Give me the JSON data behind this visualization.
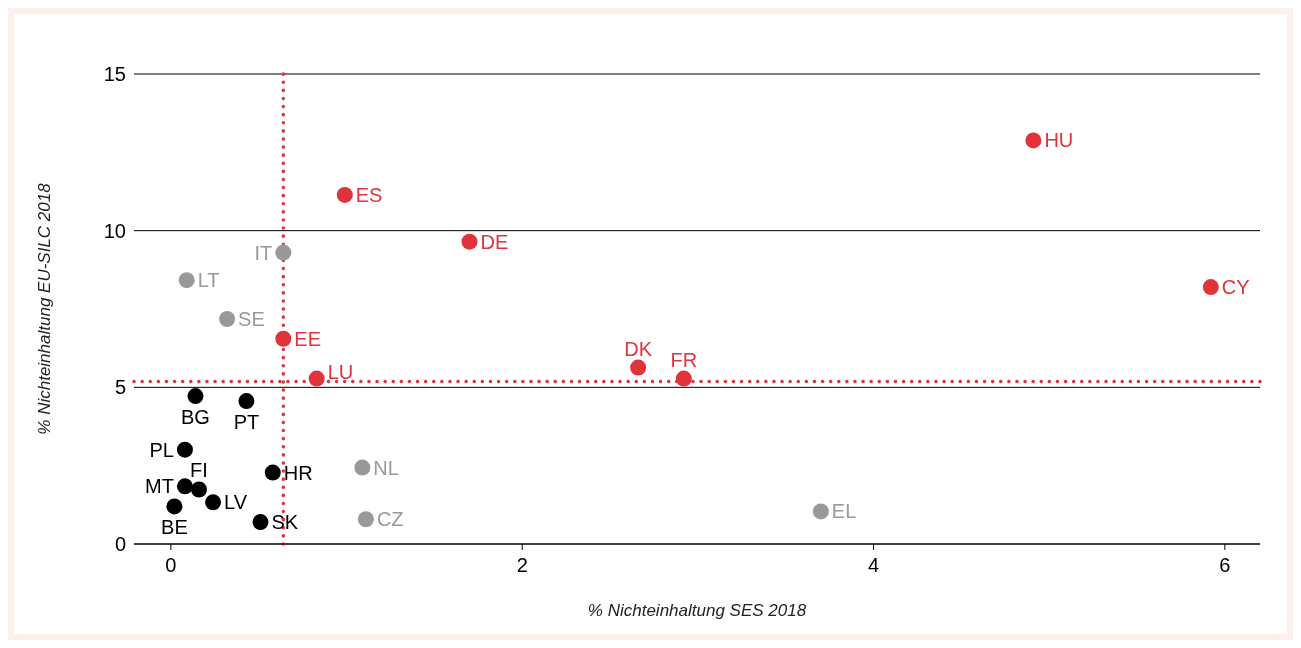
{
  "chart_data": {
    "type": "scatter",
    "xlabel": "% Nichteinhaltung SES 2018",
    "ylabel": "% Nichteinhaltung EU-SILC 2018",
    "xlim": [
      -0.21,
      6.2
    ],
    "xticks": [
      0,
      2,
      4,
      6
    ],
    "ylim": [
      0,
      15
    ],
    "yticks": [
      0,
      5,
      10,
      15
    ],
    "grid": "y",
    "marker": "circle",
    "series": [
      {
        "color": "#e0333c",
        "x": [
          4.91,
          0.99,
          1.7,
          5.92,
          0.64,
          2.66,
          2.92,
          0.83
        ],
        "values": [
          12.88,
          11.14,
          9.65,
          8.2,
          6.55,
          5.63,
          5.28,
          5.28
        ],
        "value_labels": [
          "HU",
          "ES",
          "DE",
          "CY",
          "EE",
          "DK",
          "FR",
          "LU"
        ]
      },
      {
        "color": "#999999",
        "x": [
          0.64,
          0.09,
          0.32,
          1.09,
          1.11,
          3.7
        ],
        "values": [
          9.3,
          8.42,
          7.18,
          2.44,
          0.79,
          1.04
        ],
        "value_labels": [
          "IT",
          "LT",
          "SE",
          "NL",
          "CZ",
          "EL"
        ]
      },
      {
        "color": "#000000",
        "x": [
          0.14,
          0.43,
          0.08,
          0.58,
          0.08,
          0.16,
          0.24,
          0.02,
          0.51
        ],
        "values": [
          4.72,
          4.56,
          3.01,
          2.28,
          1.84,
          1.74,
          1.33,
          1.2,
          0.7
        ],
        "value_labels": [
          "BG",
          "PT",
          "PL",
          "HR",
          "MT",
          "FI",
          "LV",
          "BE",
          "SK"
        ]
      }
    ],
    "ref_lines": [
      {
        "axis": "x",
        "value": 0.64,
        "color": "#e0333c",
        "line_style": "dotted"
      },
      {
        "axis": "y",
        "value": 5.19,
        "color": "#e0333c",
        "line_style": "dotted"
      }
    ]
  }
}
